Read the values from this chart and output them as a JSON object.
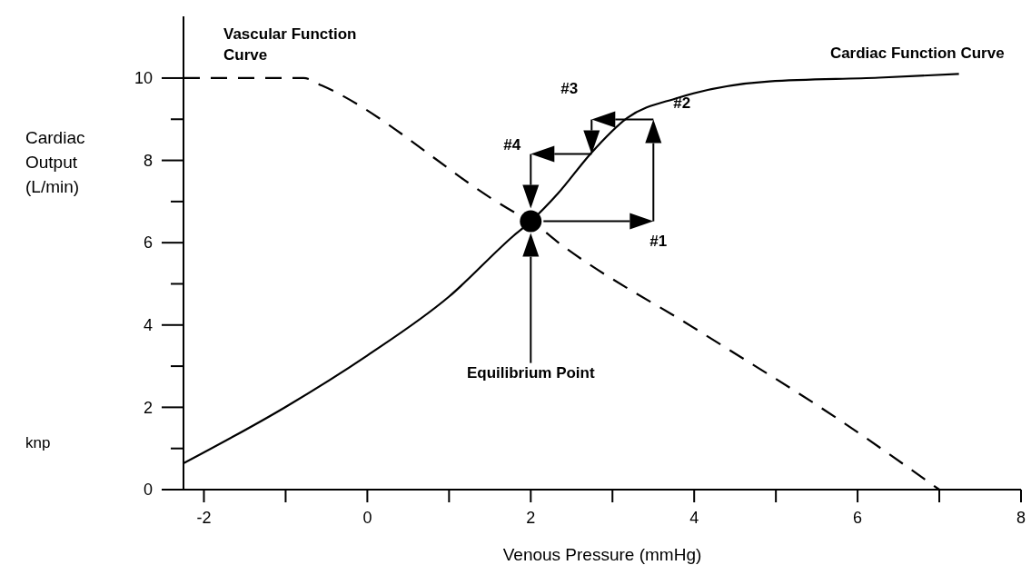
{
  "chart_data": {
    "type": "line",
    "xlabel": "Venous Pressure (mmHg)",
    "ylabel": "Cardiac Output (L/min)",
    "xlim": [
      -2.25,
      8
    ],
    "ylim": [
      0,
      11.5
    ],
    "xticks": [
      -2,
      {
        "value": -1,
        "label": null
      },
      0,
      {
        "value": 1,
        "label": null
      },
      2,
      {
        "value": 3,
        "label": null
      },
      4,
      {
        "value": 5,
        "label": null
      },
      6,
      {
        "value": 7,
        "label": null
      },
      8
    ],
    "yticks": [
      0,
      {
        "value": 1,
        "label": null
      },
      2,
      {
        "value": 3,
        "label": null
      },
      4,
      {
        "value": 5,
        "label": null
      },
      6,
      {
        "value": 7,
        "label": null
      },
      8,
      {
        "value": 9,
        "label": null
      },
      10
    ],
    "grid": false,
    "legend": false,
    "marker": "none",
    "series": [
      {
        "name": "Vascular Function Curve",
        "color": "#000000",
        "line_style": "dashed",
        "x": [
          -2.25,
          -0.78,
          -0.56,
          1.79,
          2,
          2.38,
          4.03,
          5.81,
          7.0
        ],
        "values": [
          10.0,
          10.0,
          9.82,
          6.75,
          6.52,
          5.94,
          3.89,
          1.65,
          0
        ]
      },
      {
        "name": "Cardiac Function Curve",
        "color": "#000000",
        "line_style": "solid",
        "x": [
          -2.25,
          -1,
          0,
          1,
          1.79,
          2,
          2.33,
          2.74,
          3.18,
          3.8,
          4.92,
          6.26,
          7.24
        ],
        "values": [
          0.64,
          2.01,
          3.26,
          4.69,
          6.17,
          6.52,
          7.19,
          8.18,
          9.03,
          9.52,
          9.92,
          10.01,
          10.1
        ]
      },
      {
        "type": "scatter",
        "color": "#000000",
        "marker": "circle",
        "x": [
          2
        ],
        "values": [
          6.52
        ]
      }
    ],
    "annotations": [
      "knp",
      "#1",
      "#2",
      "#3",
      "#4",
      "Equilibrium Point"
    ]
  }
}
